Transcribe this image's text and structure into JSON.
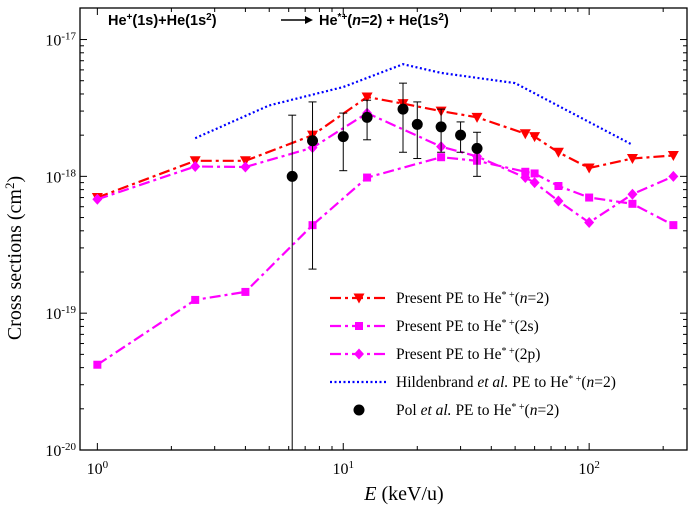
{
  "chart_data": {
    "type": "line",
    "title": "He⁺(1s)+He(1s²) ⟶ He*⁺(n=2) + He(1s²)",
    "title_parts": {
      "lhs": "He",
      "lhs_sup": "+",
      "lhs_mid": "(1s)+He(1s",
      "lhs_sup2": "2",
      "lhs_end": ")",
      "rhs": "He",
      "rhs_sup": "*+",
      "rhs_open": "(",
      "rhs_n": "n",
      "rhs_mid": "=2) + He(1s",
      "rhs_sup2": "2",
      "rhs_end": ")"
    },
    "xlabel": {
      "italic": "E",
      "rest": " (keV/u)"
    },
    "ylabel": {
      "text": "Cross sections (cm",
      "sup": "2",
      "end": ")"
    },
    "x_scale": "log",
    "y_scale": "log",
    "xlim": [
      0.85,
      250
    ],
    "ylim": [
      1e-20,
      1.7e-17
    ],
    "x_ticks": [
      {
        "value": 1,
        "base": "10",
        "exp": "0"
      },
      {
        "value": 10,
        "base": "10",
        "exp": "1"
      },
      {
        "value": 100,
        "base": "10",
        "exp": "2"
      }
    ],
    "y_ticks": [
      {
        "value": 1e-20,
        "base": "10",
        "exp": "-20"
      },
      {
        "value": 1e-19,
        "base": "10",
        "exp": "-19"
      },
      {
        "value": 1e-18,
        "base": "10",
        "exp": "-18"
      },
      {
        "value": 1e-17,
        "base": "10",
        "exp": "-17"
      }
    ],
    "grid": false,
    "legend_position": "bottom-right",
    "series": [
      {
        "name": "Present PE to He*⁺(n=2)",
        "legend": {
          "pre": "Present PE to He",
          "sup": "* +",
          "open": "(",
          "italic": "n",
          "post": "=2)"
        },
        "color": "#ff0000",
        "marker": "triangle-down",
        "line": "dash-dot",
        "x": [
          1,
          2.5,
          4,
          7.5,
          12.5,
          17.5,
          25,
          35,
          55,
          60,
          75,
          100,
          150,
          220
        ],
        "y": [
          7e-19,
          1.3e-18,
          1.3e-18,
          2e-18,
          3.8e-18,
          3.4e-18,
          3e-18,
          2.7e-18,
          2.05e-18,
          1.95e-18,
          1.5e-18,
          1.15e-18,
          1.35e-18,
          1.42e-18
        ]
      },
      {
        "name": "Present PE to He*⁺(2s)",
        "legend": {
          "pre": "Present PE to He",
          "sup": "* +",
          "open": "(",
          "italic": "",
          "post": "2s)"
        },
        "color": "#ff00ff",
        "marker": "square",
        "line": "dash-dot",
        "x": [
          1,
          2.5,
          4,
          7.5,
          12.5,
          25,
          35,
          55,
          60,
          75,
          100,
          150,
          220
        ],
        "y": [
          4.2e-20,
          1.25e-19,
          1.43e-19,
          4.4e-19,
          9.8e-19,
          1.38e-18,
          1.3e-18,
          1.08e-18,
          1.05e-18,
          8.5e-19,
          7e-19,
          6.3e-19,
          4.4e-19
        ]
      },
      {
        "name": "Present PE to He*⁺(2p)",
        "legend": {
          "pre": "Present PE to He",
          "sup": "* +",
          "open": "(",
          "italic": "",
          "post": "2p)"
        },
        "color": "#ff00ff",
        "marker": "diamond",
        "line": "dash-dot",
        "x": [
          1,
          2.5,
          4,
          7.5,
          12.5,
          25,
          35,
          55,
          60,
          75,
          100,
          150,
          220
        ],
        "y": [
          6.8e-19,
          1.18e-18,
          1.17e-18,
          1.62e-18,
          2.9e-18,
          1.65e-18,
          1.4e-18,
          9.8e-19,
          9e-19,
          6.6e-19,
          4.6e-19,
          7.4e-19,
          1e-18
        ]
      },
      {
        "name": "Hildenbrand et al. PE to He*⁺(n=2)",
        "legend": {
          "pre": "Hildenbrand ",
          "em": "et al.",
          "pre2": " PE to He",
          "sup": "* +",
          "open": "(",
          "italic": "n",
          "post": "=2)"
        },
        "color": "#0000ff",
        "marker": "none",
        "line": "dotted",
        "x": [
          2.5,
          5,
          10,
          17.5,
          25,
          50,
          150
        ],
        "y": [
          1.9e-18,
          3.3e-18,
          4.5e-18,
          6.6e-18,
          5.7e-18,
          4.8e-18,
          1.7e-18
        ]
      },
      {
        "name": "Pol et al. PE to He*⁺(n=2)",
        "legend": {
          "pre": "Pol ",
          "em": "et al.",
          "pre2": "  PE to He",
          "sup": "* +",
          "open": "(",
          "italic": "n",
          "post": "=2)"
        },
        "color": "#000000",
        "marker": "circle",
        "line": "none",
        "x": [
          6.2,
          7.5,
          10,
          12.5,
          17.5,
          20,
          25,
          30,
          35
        ],
        "y": [
          1e-18,
          1.82e-18,
          1.95e-18,
          2.7e-18,
          3.1e-18,
          2.4e-18,
          2.3e-18,
          2e-18,
          1.6e-18
        ],
        "err_low": [
          1e-20,
          2.1e-19,
          1.1e-18,
          1.85e-18,
          1.5e-18,
          1.35e-18,
          1.5e-18,
          1.5e-18,
          1e-18
        ],
        "err_high": [
          2.8e-18,
          3.5e-18,
          2.9e-18,
          3.6e-18,
          4.8e-18,
          3.5e-18,
          3.1e-18,
          2.5e-18,
          2.1e-18
        ]
      }
    ]
  }
}
